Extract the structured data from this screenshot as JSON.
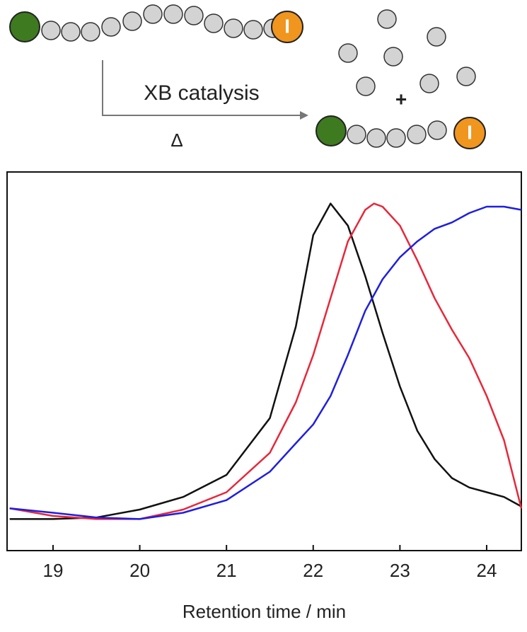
{
  "scheme": {
    "label": "XB catalysis",
    "condition": "Δ",
    "plus": "+",
    "end_group": "I"
  },
  "chart_data": {
    "type": "line",
    "x_label": "Retention time / min",
    "x": [
      18.5,
      19,
      19.5,
      20,
      20.5,
      21,
      21.5,
      21.8,
      22,
      22.2,
      22.4,
      22.6,
      22.7,
      22.8,
      23,
      23.2,
      23.4,
      23.6,
      23.8,
      24,
      24.2,
      24.4
    ],
    "series": [
      {
        "color": "#111111",
        "values": [
          0,
          0,
          0.005,
          0.03,
          0.07,
          0.14,
          0.32,
          0.61,
          0.9,
          1.0,
          0.93,
          0.77,
          0.68,
          0.59,
          0.42,
          0.28,
          0.19,
          0.13,
          0.1,
          0.085,
          0.07,
          0.04
        ]
      },
      {
        "color": "#e8273a",
        "values": [
          0.034,
          0.01,
          0.0,
          0.0,
          0.03,
          0.085,
          0.21,
          0.37,
          0.52,
          0.7,
          0.88,
          0.98,
          1.0,
          0.99,
          0.93,
          0.82,
          0.7,
          0.6,
          0.51,
          0.39,
          0.25,
          0.034
        ]
      },
      {
        "color": "#1f1fe0",
        "values": [
          0.034,
          0.02,
          0.005,
          0.0,
          0.02,
          0.06,
          0.15,
          0.24,
          0.3,
          0.39,
          0.52,
          0.66,
          0.71,
          0.76,
          0.83,
          0.88,
          0.92,
          0.94,
          0.97,
          0.99,
          0.99,
          0.98
        ]
      }
    ],
    "xlim": [
      18.47,
      24.4
    ],
    "xticks": [
      19,
      20,
      21,
      22,
      23,
      24
    ],
    "ylim": [
      -0.1,
      1.1
    ]
  }
}
